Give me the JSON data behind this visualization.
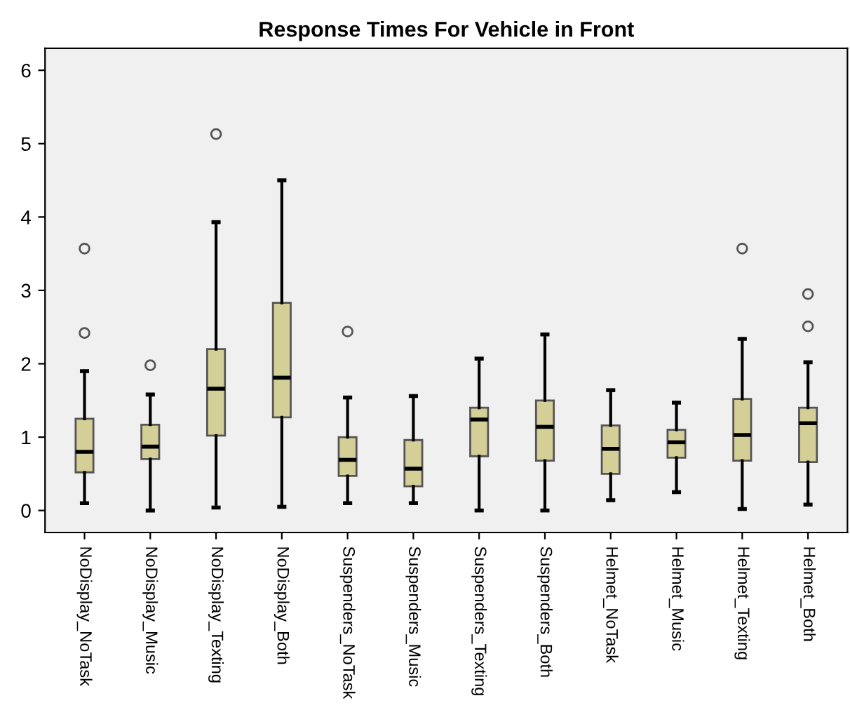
{
  "chart_data": {
    "type": "box",
    "title": "Response Times For Vehicle in Front",
    "categories": [
      "NoDisplay_NoTask",
      "NoDisplay_Music",
      "NoDisplay_Texting",
      "NoDisplay_Both",
      "Suspenders_NoTask",
      "Suspenders_Music",
      "Suspenders_Texting",
      "Suspenders_Both",
      "Helmet_NoTask",
      "Helmet_Music",
      "Helmet_Texting",
      "Helmet_Both"
    ],
    "color": "#d4cf97",
    "boxes": [
      {
        "low": 0.1,
        "q1": 0.52,
        "median": 0.8,
        "q3": 1.25,
        "high": 1.9,
        "outliers": [
          2.42,
          3.57
        ]
      },
      {
        "low": 0.0,
        "q1": 0.7,
        "median": 0.87,
        "q3": 1.17,
        "high": 1.58,
        "outliers": [
          1.98
        ]
      },
      {
        "low": 0.04,
        "q1": 1.02,
        "median": 1.66,
        "q3": 2.2,
        "high": 3.93,
        "outliers": [
          5.13
        ]
      },
      {
        "low": 0.05,
        "q1": 1.27,
        "median": 1.81,
        "q3": 2.83,
        "high": 4.5
      },
      {
        "low": 0.1,
        "q1": 0.47,
        "median": 0.69,
        "q3": 1.0,
        "high": 1.54,
        "outliers": [
          2.44
        ]
      },
      {
        "low": 0.1,
        "q1": 0.33,
        "median": 0.57,
        "q3": 0.96,
        "high": 1.56
      },
      {
        "low": 0.0,
        "q1": 0.74,
        "median": 1.24,
        "q3": 1.4,
        "high": 2.07
      },
      {
        "low": 0.0,
        "q1": 0.68,
        "median": 1.14,
        "q3": 1.5,
        "high": 2.4
      },
      {
        "low": 0.14,
        "q1": 0.5,
        "median": 0.84,
        "q3": 1.16,
        "high": 1.64
      },
      {
        "low": 0.25,
        "q1": 0.72,
        "median": 0.93,
        "q3": 1.1,
        "high": 1.47
      },
      {
        "low": 0.02,
        "q1": 0.68,
        "median": 1.03,
        "q3": 1.52,
        "high": 2.34,
        "outliers": [
          3.57
        ]
      },
      {
        "low": 0.08,
        "q1": 0.66,
        "median": 1.19,
        "q3": 1.4,
        "high": 2.02,
        "outliers": [
          2.51,
          2.95
        ]
      }
    ],
    "ylim": [
      -0.3,
      6.3
    ],
    "yticks": [
      0,
      1,
      2,
      3,
      4,
      5,
      6
    ],
    "grid": false,
    "legend": false
  }
}
